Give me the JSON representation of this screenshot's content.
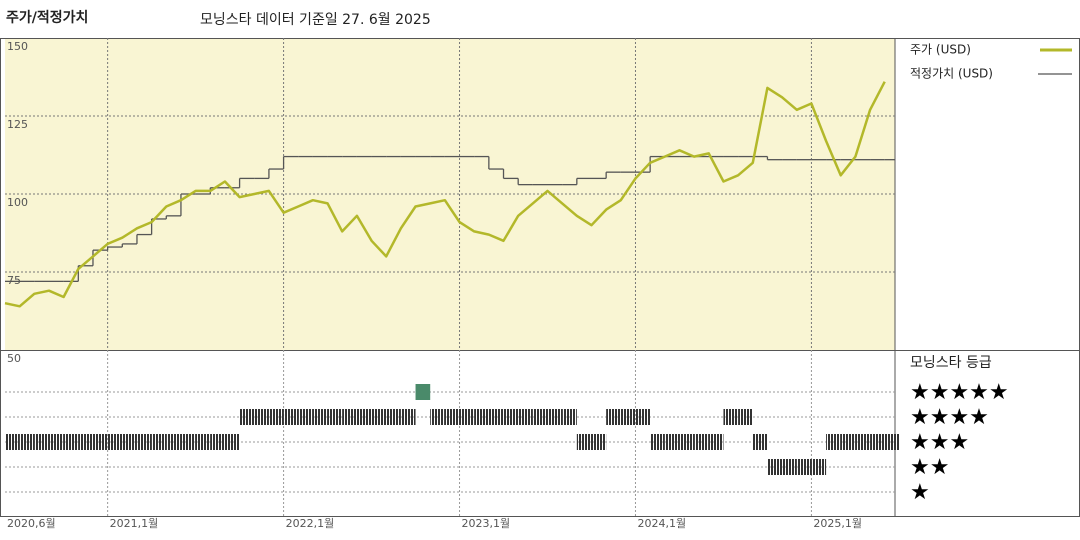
{
  "chart_data": {
    "type": "line",
    "title": "주가/적정가치",
    "subtitle": "모닝스타 데이터 기준일 27. 6월 2025",
    "x": [
      "2020-06",
      "2020-07",
      "2020-08",
      "2020-09",
      "2020-10",
      "2020-11",
      "2020-12",
      "2021-01",
      "2021-02",
      "2021-03",
      "2021-04",
      "2021-05",
      "2021-06",
      "2021-07",
      "2021-08",
      "2021-09",
      "2021-10",
      "2021-11",
      "2021-12",
      "2022-01",
      "2022-02",
      "2022-03",
      "2022-04",
      "2022-05",
      "2022-06",
      "2022-07",
      "2022-08",
      "2022-09",
      "2022-10",
      "2022-11",
      "2022-12",
      "2023-01",
      "2023-02",
      "2023-03",
      "2023-04",
      "2023-05",
      "2023-06",
      "2023-07",
      "2023-08",
      "2023-09",
      "2023-10",
      "2023-11",
      "2023-12",
      "2024-01",
      "2024-02",
      "2024-03",
      "2024-04",
      "2024-05",
      "2024-06",
      "2024-07",
      "2024-08",
      "2024-09",
      "2024-10",
      "2024-11",
      "2024-12",
      "2025-01",
      "2025-02",
      "2025-03",
      "2025-04",
      "2025-05",
      "2025-06"
    ],
    "xticks": [
      {
        "value": "2020-06",
        "label": "2020,6월"
      },
      {
        "value": "2021-01",
        "label": "2021,1월"
      },
      {
        "value": "2022-01",
        "label": "2022,1월"
      },
      {
        "value": "2023-01",
        "label": "2023,1월"
      },
      {
        "value": "2024-01",
        "label": "2024,1월"
      },
      {
        "value": "2025-01",
        "label": "2025,1월"
      }
    ],
    "ylim": [
      50,
      150
    ],
    "yticks": [
      150,
      125,
      100,
      75,
      50
    ],
    "grid": true,
    "series": [
      {
        "name": "주가 (USD)",
        "color": "#b3b82a",
        "values": [
          65,
          64,
          68,
          69,
          67,
          76,
          80,
          84,
          86,
          89,
          91,
          96,
          98,
          101,
          101,
          104,
          99,
          100,
          101,
          94,
          96,
          98,
          97,
          88,
          93,
          85,
          80,
          89,
          96,
          97,
          98,
          91,
          88,
          87,
          85,
          93,
          97,
          101,
          97,
          93,
          90,
          95,
          98,
          105,
          110,
          112,
          114,
          112,
          113,
          104,
          106,
          110,
          134,
          131,
          127,
          129,
          117,
          106,
          112,
          127,
          136
        ]
      },
      {
        "name": "적정가치 (USD)",
        "color": "#555555",
        "step": true,
        "values": [
          72,
          72,
          72,
          72,
          72,
          77,
          82,
          83,
          84,
          87,
          92,
          93,
          100,
          100,
          102,
          102,
          105,
          105,
          108,
          112,
          112,
          112,
          112,
          112,
          112,
          112,
          112,
          112,
          112,
          112,
          112,
          112,
          112,
          108,
          105,
          103,
          103,
          103,
          103,
          105,
          105,
          107,
          107,
          107,
          112,
          112,
          112,
          112,
          112,
          112,
          112,
          112,
          111,
          111,
          111,
          111,
          111,
          111,
          111,
          111,
          111
        ]
      }
    ],
    "rating_title": "모닝스타 등급",
    "rating_labels": [
      "★★★★★",
      "★★★★",
      "★★★",
      "★★",
      "★"
    ],
    "rating_levels": [
      5,
      4,
      3,
      2,
      1
    ],
    "rating_color": "#333333",
    "rating_top_color": "#4a8a6a",
    "ratings": [
      3,
      3,
      3,
      3,
      3,
      3,
      3,
      3,
      3,
      3,
      3,
      3,
      3,
      3,
      3,
      3,
      4,
      4,
      4,
      4,
      4,
      4,
      4,
      4,
      4,
      4,
      4,
      4,
      5,
      4,
      4,
      4,
      4,
      4,
      4,
      4,
      4,
      4,
      4,
      3,
      3,
      4,
      4,
      4,
      3,
      3,
      3,
      3,
      3,
      4,
      4,
      3,
      2,
      2,
      2,
      2,
      3,
      3,
      3,
      3,
      3
    ]
  }
}
